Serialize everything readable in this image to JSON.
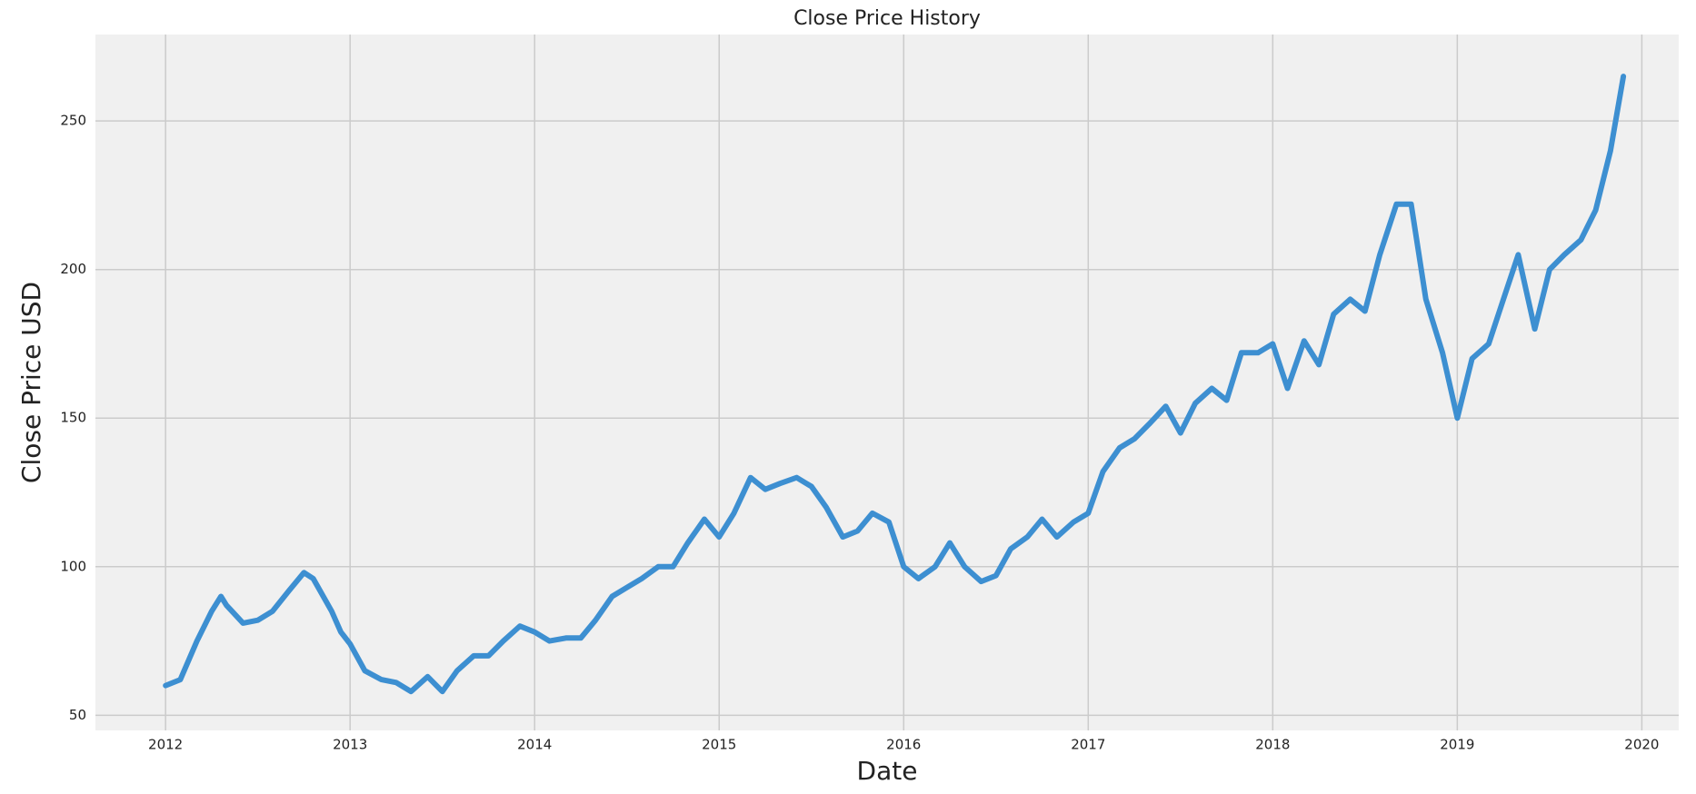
{
  "chart_data": {
    "type": "line",
    "title": "Close Price History",
    "xlabel": "Date",
    "ylabel": "Close Price USD",
    "x": [
      2012.0,
      2012.08,
      2012.17,
      2012.25,
      2012.3,
      2012.33,
      2012.42,
      2012.5,
      2012.58,
      2012.67,
      2012.75,
      2012.8,
      2012.9,
      2012.95,
      2013.0,
      2013.08,
      2013.17,
      2013.25,
      2013.33,
      2013.42,
      2013.5,
      2013.58,
      2013.67,
      2013.75,
      2013.83,
      2013.92,
      2014.0,
      2014.08,
      2014.17,
      2014.25,
      2014.33,
      2014.42,
      2014.5,
      2014.58,
      2014.67,
      2014.75,
      2014.83,
      2014.92,
      2015.0,
      2015.08,
      2015.17,
      2015.25,
      2015.33,
      2015.42,
      2015.5,
      2015.58,
      2015.67,
      2015.75,
      2015.83,
      2015.92,
      2016.0,
      2016.08,
      2016.17,
      2016.25,
      2016.33,
      2016.42,
      2016.5,
      2016.58,
      2016.67,
      2016.75,
      2016.83,
      2016.92,
      2017.0,
      2017.08,
      2017.17,
      2017.25,
      2017.33,
      2017.42,
      2017.5,
      2017.58,
      2017.67,
      2017.75,
      2017.83,
      2017.92,
      2018.0,
      2018.08,
      2018.17,
      2018.25,
      2018.33,
      2018.42,
      2018.5,
      2018.58,
      2018.67,
      2018.75,
      2018.83,
      2018.92,
      2019.0,
      2019.08,
      2019.17,
      2019.25,
      2019.33,
      2019.42,
      2019.5,
      2019.58,
      2019.67,
      2019.75,
      2019.83,
      2019.9
    ],
    "series": [
      {
        "name": "Close",
        "color": "#3d8fd1",
        "values": [
          60,
          62,
          75,
          85,
          90,
          87,
          81,
          82,
          85,
          92,
          98,
          96,
          85,
          78,
          74,
          65,
          62,
          61,
          58,
          63,
          58,
          65,
          70,
          70,
          75,
          80,
          78,
          75,
          76,
          76,
          82,
          90,
          93,
          96,
          100,
          100,
          108,
          116,
          110,
          118,
          130,
          126,
          128,
          130,
          127,
          120,
          110,
          112,
          118,
          115,
          100,
          96,
          100,
          108,
          100,
          95,
          97,
          106,
          110,
          116,
          110,
          115,
          118,
          132,
          140,
          143,
          148,
          154,
          145,
          155,
          160,
          156,
          172,
          172,
          175,
          160,
          176,
          168,
          185,
          190,
          186,
          205,
          222,
          222,
          190,
          172,
          150,
          170,
          175,
          190,
          205,
          180,
          200,
          205,
          210,
          220,
          240,
          265
        ]
      }
    ],
    "xlim": [
      2011.62,
      2020.2
    ],
    "xticks": [
      2012,
      2013,
      2014,
      2015,
      2016,
      2017,
      2018,
      2019,
      2020
    ],
    "ylim": [
      44.9,
      279.1
    ],
    "yticks": [
      50,
      100,
      150,
      200,
      250
    ],
    "grid": true
  }
}
